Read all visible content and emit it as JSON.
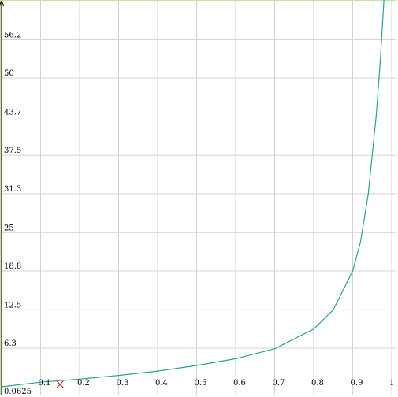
{
  "chart_data": {
    "type": "line",
    "title": "",
    "xlabel": "",
    "ylabel": "",
    "xlim": [
      0,
      1
    ],
    "ylim": [
      0.0625,
      62.5
    ],
    "grid": true,
    "x_ticks": [
      0.1,
      0.2,
      0.3,
      0.4,
      0.5,
      0.6,
      0.7,
      0.8,
      0.9,
      1
    ],
    "x_tick_labels": [
      "0.1",
      "0.2",
      "0.3",
      "0.4",
      "0.5",
      "0.6",
      "0.7",
      "0.8",
      "0.9",
      "1"
    ],
    "y_ticks": [
      0.0625,
      6.3,
      12.5,
      18.8,
      25,
      31.3,
      37.5,
      43.7,
      50,
      56.2
    ],
    "y_tick_labels": [
      "0.0625",
      "6.3",
      "12.5",
      "18.8",
      "25",
      "31.3",
      "37.5",
      "43.7",
      "50",
      "56.2"
    ],
    "series": [
      {
        "color": "#2aa198",
        "x": [
          0,
          0.1,
          0.2,
          0.3,
          0.4,
          0.5,
          0.6,
          0.7,
          0.8,
          0.85,
          0.9,
          0.92,
          0.94,
          0.96,
          0.97,
          0.98,
          0.99
        ],
        "y": [
          0.0625,
          0.8,
          1.3,
          1.9,
          2.6,
          3.5,
          4.6,
          6.2,
          9.4,
          12.5,
          18.8,
          23.5,
          31.3,
          43.7,
          52,
          62.5,
          75
        ]
      }
    ],
    "marker": {
      "x": 0.15,
      "y": 0.0625,
      "symbol": "x",
      "color": "#cc0000"
    },
    "colors": {
      "grid": "#d3d3d3",
      "axis": "#000000",
      "frame": "#c8e0a0"
    }
  }
}
